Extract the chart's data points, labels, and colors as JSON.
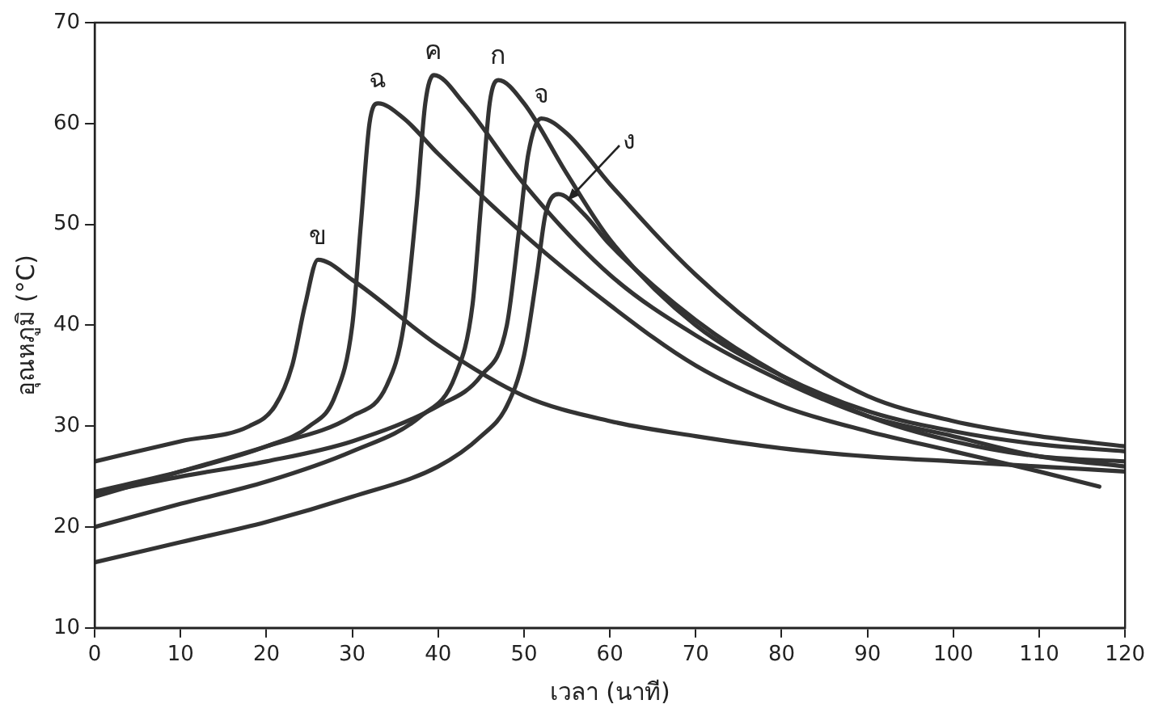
{
  "chart_data": {
    "type": "line",
    "xlabel": "เวลา (นาที)",
    "ylabel": "อุณหภูมิ (°C)",
    "xlim": [
      0,
      120
    ],
    "ylim": [
      10,
      70
    ],
    "xticks": [
      0,
      10,
      20,
      30,
      40,
      50,
      60,
      70,
      80,
      90,
      100,
      110,
      120
    ],
    "yticks": [
      10,
      20,
      30,
      40,
      50,
      60,
      70
    ],
    "grid": false,
    "legend": false,
    "marker": "none",
    "line_style": "solid",
    "series": [
      {
        "name": "ก",
        "color": "#333333",
        "x": [
          0,
          10,
          20,
          30,
          38,
          42,
          44,
          45,
          46,
          47,
          50,
          55,
          60,
          70,
          80,
          90,
          100,
          110,
          120
        ],
        "values": [
          20,
          22.3,
          24.5,
          27.5,
          31,
          35,
          42,
          52,
          62,
          64.3,
          62,
          55,
          48.5,
          40,
          35,
          31.5,
          29.5,
          28.2,
          27.5
        ]
      },
      {
        "name": "ข",
        "color": "#333333",
        "x": [
          0,
          10,
          18,
          21,
          23,
          24.5,
          26,
          30,
          40,
          50,
          60,
          70,
          80,
          90,
          100,
          110,
          120
        ],
        "values": [
          26.5,
          28.5,
          30,
          32,
          36,
          42,
          46.5,
          44.5,
          38,
          33,
          30.5,
          29,
          27.8,
          27,
          26.5,
          26,
          25.5
        ]
      },
      {
        "name": "ค",
        "color": "#333333",
        "x": [
          0,
          10,
          20,
          30,
          34,
          36,
          37.5,
          38.5,
          39.5,
          43,
          50,
          60,
          70,
          80,
          90,
          100,
          110,
          120
        ],
        "values": [
          23,
          25.5,
          28,
          31,
          34,
          40,
          52,
          62,
          64.8,
          62,
          54,
          45,
          39,
          34.5,
          31,
          29,
          27,
          26
        ]
      },
      {
        "name": "ง",
        "color": "#333333",
        "x": [
          0,
          10,
          20,
          30,
          40,
          45,
          48,
          50,
          51.5,
          52.5,
          54,
          57,
          60,
          70,
          80,
          90,
          100,
          110,
          120
        ],
        "values": [
          16.5,
          18.5,
          20.5,
          23,
          26,
          29,
          32,
          37,
          45,
          51,
          53,
          51,
          48,
          40.5,
          35,
          31,
          28.5,
          27,
          26.5
        ]
      },
      {
        "name": "จ",
        "color": "#333333",
        "x": [
          0,
          10,
          20,
          30,
          40,
          45,
          48,
          49.5,
          50.5,
          52,
          55,
          60,
          70,
          80,
          90,
          100,
          110,
          120
        ],
        "values": [
          23.3,
          25,
          26.5,
          28.5,
          32,
          35,
          40,
          50,
          57,
          60.5,
          59,
          54,
          45,
          38,
          33,
          30.5,
          29,
          28
        ]
      },
      {
        "name": "ฉ",
        "color": "#333333",
        "x": [
          0,
          10,
          20,
          25,
          28,
          30,
          31,
          32,
          33,
          36,
          40,
          50,
          60,
          70,
          80,
          90,
          100,
          110,
          117
        ],
        "values": [
          23.5,
          25.5,
          28,
          30,
          33,
          40,
          50,
          60,
          62,
          60.5,
          57,
          49,
          42,
          36,
          32,
          29.5,
          27.5,
          25.5,
          24
        ]
      }
    ]
  }
}
